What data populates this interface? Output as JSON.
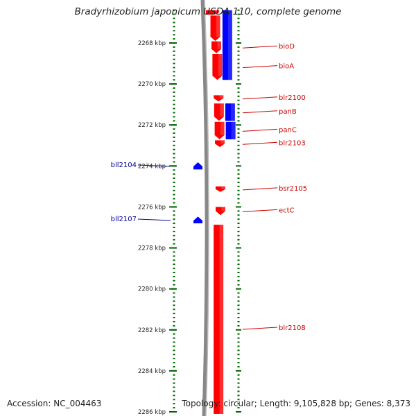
{
  "title": "Bradyrhizobium japonicum USDA 110, complete genome",
  "footer": {
    "accession": "Accession: NC_004463",
    "summary": "Topology: circular; Length: 9,105,828 bp; Genes: 8,373"
  },
  "colors": {
    "forward_strand": "#ff0000",
    "reverse_strand": "#0000ff",
    "forward_label": "#cc0000",
    "reverse_label": "#000099",
    "tick": "#006600",
    "backbone": "#888888"
  },
  "axis": {
    "unit": "kbp",
    "range_kbp": [
      2266.4,
      2286.1
    ],
    "major_ticks": [
      {
        "kbp": 2268,
        "label": "2268 kbp"
      },
      {
        "kbp": 2270,
        "label": "2270 kbp"
      },
      {
        "kbp": 2272,
        "label": "2272 kbp"
      },
      {
        "kbp": 2274,
        "label": "2274 kbp"
      },
      {
        "kbp": 2276,
        "label": "2276 kbp"
      },
      {
        "kbp": 2278,
        "label": "2278 kbp"
      },
      {
        "kbp": 2280,
        "label": "2280 kbp"
      },
      {
        "kbp": 2282,
        "label": "2282 kbp"
      },
      {
        "kbp": 2284,
        "label": "2284 kbp"
      },
      {
        "kbp": 2286,
        "label": "2286 kbp"
      }
    ]
  },
  "chart_data": {
    "type": "genome-map",
    "forward_genes": [
      {
        "name": "",
        "start_kbp": 2266.4,
        "end_kbp": 2266.62
      },
      {
        "name": "",
        "start_kbp": 2266.66,
        "end_kbp": 2267.9
      },
      {
        "name": "bioD",
        "start_kbp": 2267.92,
        "end_kbp": 2268.5
      },
      {
        "name": "bioA",
        "start_kbp": 2268.54,
        "end_kbp": 2269.8
      },
      {
        "name": "blr2100",
        "start_kbp": 2270.55,
        "end_kbp": 2270.85
      },
      {
        "name": "panB",
        "start_kbp": 2270.95,
        "end_kbp": 2271.8
      },
      {
        "name": "panC",
        "start_kbp": 2271.85,
        "end_kbp": 2272.7
      },
      {
        "name": "blr2103",
        "start_kbp": 2272.75,
        "end_kbp": 2273.08
      },
      {
        "name": "bsr2105",
        "start_kbp": 2275.0,
        "end_kbp": 2275.27
      },
      {
        "name": "ectC",
        "start_kbp": 2276.0,
        "end_kbp": 2276.4
      },
      {
        "name": "blr2108",
        "start_kbp": 2276.87,
        "end_kbp": 2286.1
      }
    ],
    "forward_inner_genes": [
      {
        "name": "",
        "start_kbp": 2266.4,
        "end_kbp": 2266.62
      }
    ],
    "reverse_genes": [
      {
        "name": "bll2104",
        "start_kbp": 2273.82,
        "end_kbp": 2274.17
      },
      {
        "name": "bll2107",
        "start_kbp": 2276.47,
        "end_kbp": 2276.8
      }
    ],
    "outer_blue_genes": [
      {
        "name": "",
        "start_kbp": 2266.4,
        "end_kbp": 2269.8
      },
      {
        "name": "",
        "start_kbp": 2270.95,
        "end_kbp": 2271.8
      },
      {
        "name": "",
        "start_kbp": 2271.85,
        "end_kbp": 2272.7
      }
    ]
  }
}
